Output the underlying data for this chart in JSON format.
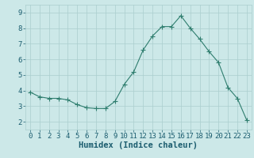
{
  "x": [
    0,
    1,
    2,
    3,
    4,
    5,
    6,
    7,
    8,
    9,
    10,
    11,
    12,
    13,
    14,
    15,
    16,
    17,
    18,
    19,
    20,
    21,
    22,
    23
  ],
  "y": [
    3.9,
    3.6,
    3.5,
    3.5,
    3.4,
    3.1,
    2.9,
    2.85,
    2.85,
    3.3,
    4.4,
    5.2,
    6.6,
    7.5,
    8.1,
    8.1,
    8.8,
    8.0,
    7.3,
    6.5,
    5.8,
    4.2,
    3.5,
    2.1
  ],
  "line_color": "#2e7d6e",
  "marker": "+",
  "marker_size": 4,
  "bg_color": "#cce8e8",
  "grid_color": "#aacece",
  "xlabel": "Humidex (Indice chaleur)",
  "xlim": [
    -0.5,
    23.5
  ],
  "ylim": [
    1.5,
    9.5
  ],
  "yticks": [
    2,
    3,
    4,
    5,
    6,
    7,
    8,
    9
  ],
  "xticks": [
    0,
    1,
    2,
    3,
    4,
    5,
    6,
    7,
    8,
    9,
    10,
    11,
    12,
    13,
    14,
    15,
    16,
    17,
    18,
    19,
    20,
    21,
    22,
    23
  ],
  "tick_color": "#1a5c6e",
  "font_size": 6.5,
  "xlabel_fontsize": 7.5,
  "linewidth": 0.8,
  "markeredgewidth": 0.8
}
